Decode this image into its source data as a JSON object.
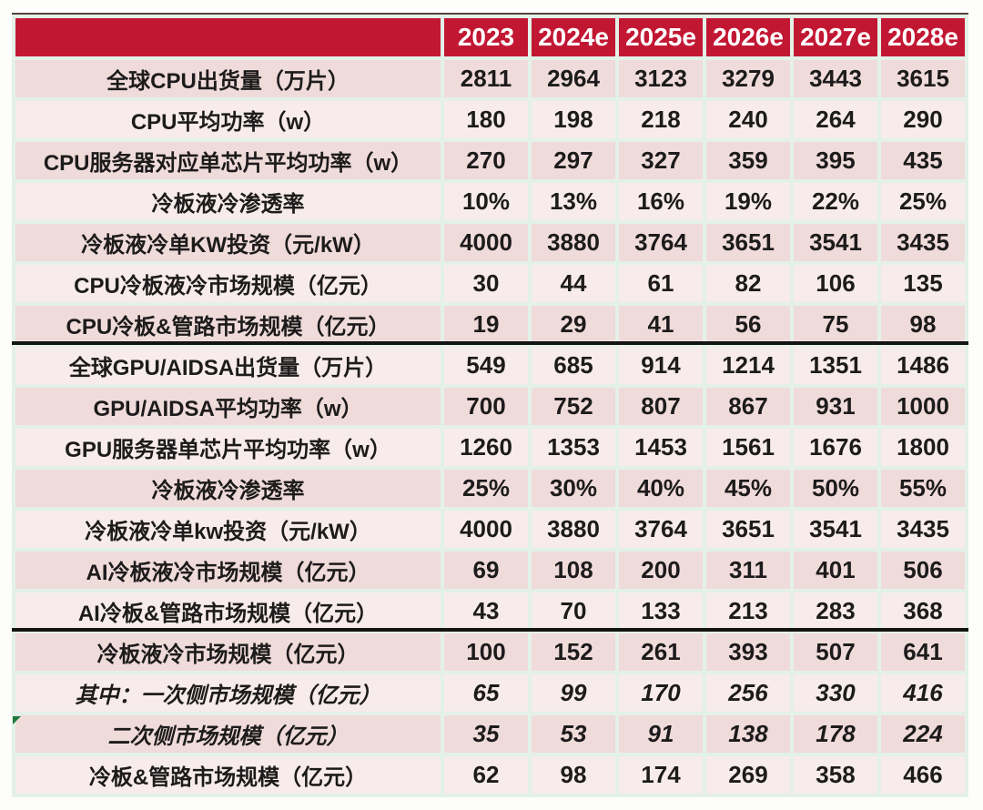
{
  "colors": {
    "header_bg": "#c21733",
    "header_text": "#ffffff",
    "row_dark": "#f0dbdb",
    "row_light": "#f7eceb",
    "grid_gap": "#e3f1e8",
    "section_divider": "#141414",
    "comment_marker_green": "#1d7a38",
    "text": "#1d1b1b"
  },
  "chart_data": {
    "type": "table",
    "corner_label": "",
    "columns": [
      "2023",
      "2024e",
      "2025e",
      "2026e",
      "2027e",
      "2028e"
    ],
    "rows": [
      {
        "label": "全球CPU出货量（万片）",
        "values": [
          "2811",
          "2964",
          "3123",
          "3279",
          "3443",
          "3615"
        ],
        "italic": false
      },
      {
        "label": "CPU平均功率（w）",
        "values": [
          "180",
          "198",
          "218",
          "240",
          "264",
          "290"
        ],
        "italic": false
      },
      {
        "label": "CPU服务器对应单芯片平均功率（w）",
        "values": [
          "270",
          "297",
          "327",
          "359",
          "395",
          "435"
        ],
        "italic": false
      },
      {
        "label": "冷板液冷渗透率",
        "values": [
          "10%",
          "13%",
          "16%",
          "19%",
          "22%",
          "25%"
        ],
        "italic": false
      },
      {
        "label": "冷板液冷单KW投资（元/kW）",
        "values": [
          "4000",
          "3880",
          "3764",
          "3651",
          "3541",
          "3435"
        ],
        "italic": false
      },
      {
        "label": "CPU冷板液冷市场规模（亿元）",
        "values": [
          "30",
          "44",
          "61",
          "82",
          "106",
          "135"
        ],
        "italic": false
      },
      {
        "label": "CPU冷板&管路市场规模（亿元）",
        "values": [
          "19",
          "29",
          "41",
          "56",
          "75",
          "98"
        ],
        "italic": false
      },
      {
        "label": "全球GPU/AIDSA出货量（万片）",
        "values": [
          "549",
          "685",
          "914",
          "1214",
          "1351",
          "1486"
        ],
        "italic": false,
        "section_start": true
      },
      {
        "label": "GPU/AIDSA平均功率（w）",
        "values": [
          "700",
          "752",
          "807",
          "867",
          "931",
          "1000"
        ],
        "italic": false
      },
      {
        "label": "GPU服务器单芯片平均功率（w）",
        "values": [
          "1260",
          "1353",
          "1453",
          "1561",
          "1676",
          "1800"
        ],
        "italic": false
      },
      {
        "label": "冷板液冷渗透率",
        "values": [
          "25%",
          "30%",
          "40%",
          "45%",
          "50%",
          "55%"
        ],
        "italic": false
      },
      {
        "label": "冷板液冷单kw投资（元/kW）",
        "values": [
          "4000",
          "3880",
          "3764",
          "3651",
          "3541",
          "3435"
        ],
        "italic": false
      },
      {
        "label": "AI冷板液冷市场规模（亿元）",
        "values": [
          "69",
          "108",
          "200",
          "311",
          "401",
          "506"
        ],
        "italic": false
      },
      {
        "label": "AI冷板&管路市场规模（亿元）",
        "values": [
          "43",
          "70",
          "133",
          "213",
          "283",
          "368"
        ],
        "italic": false
      },
      {
        "label": "冷板液冷市场规模（亿元）",
        "values": [
          "100",
          "152",
          "261",
          "393",
          "507",
          "641"
        ],
        "italic": false,
        "section_start": true
      },
      {
        "label": "其中：一次侧市场规模（亿元）",
        "values": [
          "65",
          "99",
          "170",
          "256",
          "330",
          "416"
        ],
        "italic": true
      },
      {
        "label": "二次侧市场规模（亿元）",
        "values": [
          "35",
          "53",
          "91",
          "138",
          "178",
          "224"
        ],
        "italic": true,
        "has_comment_marker": true
      },
      {
        "label": "冷板&管路市场规模（亿元）",
        "values": [
          "62",
          "98",
          "174",
          "269",
          "358",
          "466"
        ],
        "italic": false
      }
    ]
  }
}
